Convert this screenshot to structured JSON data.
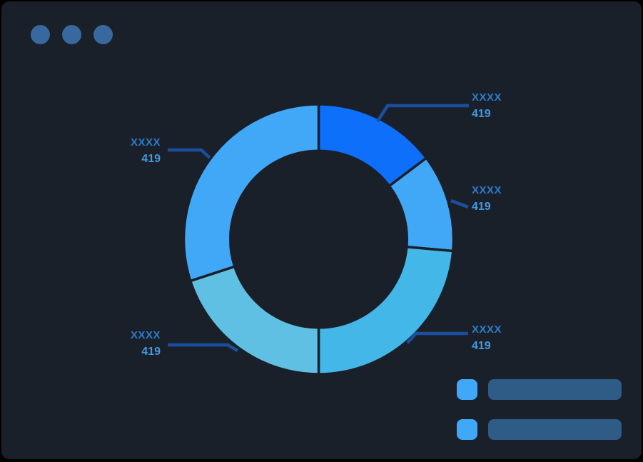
{
  "window": {
    "titlebar_dots": 3
  },
  "colors": {
    "panel_bg": "#1a202a",
    "outer_bg": "#000000",
    "dot": "#38699e",
    "leader": "#1b4f9e",
    "label_x": "#2b7dce",
    "label_value": "#3f9ae3",
    "legend_bar": "#2e5c87",
    "slice_light": "#41a8f8"
  },
  "chart_data": {
    "type": "pie",
    "subtype": "donut",
    "title": "",
    "legend_position": "bottom-right",
    "hole_ratio": 0.655,
    "segments": [
      {
        "label": "XXXX",
        "value": "419",
        "start_angle": 0,
        "end_angle": 53,
        "color": "#0d6ffa",
        "label_position": "top-right"
      },
      {
        "label": "XXXX",
        "value": "419",
        "start_angle": 53,
        "end_angle": 95,
        "color": "#41a8f8",
        "label_position": "right"
      },
      {
        "label": "XXXX",
        "value": "419",
        "start_angle": 95,
        "end_angle": 180,
        "color": "#43b7e8",
        "label_position": "bottom-right"
      },
      {
        "label": "XXXX",
        "value": "419",
        "start_angle": 180,
        "end_angle": 252,
        "color": "#60c0e3",
        "label_position": "bottom-left"
      },
      {
        "label": "XXXX",
        "value": "419",
        "start_angle": 252,
        "end_angle": 360,
        "color": "#41a8f8",
        "label_position": "top-left"
      }
    ]
  },
  "legend": {
    "items": [
      {
        "swatch_color": "#41a8f8",
        "bar_color": "#2e5c87",
        "label": ""
      },
      {
        "swatch_color": "#41a8f8",
        "bar_color": "#2e5c87",
        "label": ""
      }
    ]
  }
}
